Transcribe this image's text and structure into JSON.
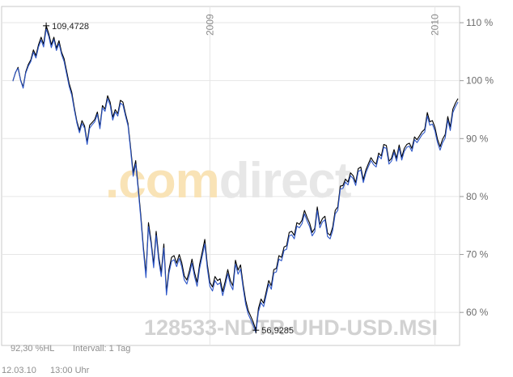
{
  "watermark": {
    "brand_prefix": ".com",
    "brand_suffix": "direct",
    "instrument_code": "128533-NDTR-UHD-USD.MSI"
  },
  "footer": {
    "percent_hl": "92,30 %HL",
    "interval": "Intervall: 1 Tag",
    "date": "12.03.10",
    "time": "13:00 Uhr"
  },
  "colors": {
    "series_a": "#000000",
    "series_b": "#2d56c8",
    "grid": "#e6e6e6",
    "watermark_orange": "#f9e3b6",
    "watermark_gray": "#e7e7e7"
  },
  "chart_data": {
    "type": "line",
    "y_unit": "%",
    "ylim": [
      54.3,
      112.8
    ],
    "y_ticks": [
      60,
      70,
      80,
      90,
      100,
      110
    ],
    "y_tick_labels": [
      "60 %",
      "70 %",
      "80 %",
      "90 %",
      "100 %",
      "110 %"
    ],
    "y_axis_position": "right",
    "grid": true,
    "year_markers": [
      {
        "label": "2009",
        "index": 77
      },
      {
        "label": "2010",
        "index": 165
      }
    ],
    "max_label": "109,4728",
    "min_label": "56,9285",
    "series": [
      {
        "values": [
          100.0,
          101.4,
          102.3,
          100.1,
          98.9,
          101.5,
          102.8,
          103.6,
          105.3,
          104.3,
          106.2,
          107.5,
          106.3,
          109.47,
          108.1,
          106.2,
          107.5,
          105.6,
          106.9,
          104.9,
          103.8,
          101.6,
          99.5,
          98.0,
          95.3,
          93.0,
          91.4,
          93.1,
          92.2,
          89.4,
          92.3,
          92.8,
          93.3,
          94.6,
          92.1,
          95.7,
          95.1,
          97.4,
          96.3,
          93.7,
          95.0,
          94.3,
          96.6,
          96.3,
          94.3,
          92.6,
          88.5,
          84.1,
          86.2,
          81.5,
          76.8,
          71.3,
          66.7,
          75.5,
          72.4,
          68.3,
          74.0,
          69.6,
          66.9,
          71.8,
          63.6,
          67.4,
          69.5,
          69.8,
          68.5,
          70.0,
          68.6,
          66.3,
          65.6,
          67.2,
          69.2,
          66.9,
          65.2,
          68.3,
          70.4,
          72.6,
          68.3,
          65.2,
          64.4,
          66.2,
          65.5,
          65.8,
          63.6,
          65.4,
          67.4,
          65.5,
          64.6,
          69.0,
          67.3,
          68.2,
          64.8,
          62.1,
          60.3,
          59.3,
          58.3,
          56.93,
          60.7,
          62.3,
          61.6,
          63.5,
          65.5,
          64.6,
          67.4,
          67.6,
          69.8,
          69.5,
          71.3,
          71.5,
          73.8,
          74.0,
          73.3,
          75.5,
          75.2,
          75.9,
          77.6,
          76.4,
          75.4,
          73.8,
          74.5,
          78.2,
          75.2,
          76.2,
          76.6,
          73.7,
          73.3,
          74.7,
          77.6,
          78.2,
          81.8,
          81.9,
          83.0,
          82.5,
          84.1,
          83.6,
          82.4,
          84.8,
          85.1,
          82.9,
          84.6,
          85.7,
          86.7,
          86.0,
          85.6,
          87.5,
          87.0,
          89.0,
          88.8,
          86.1,
          86.6,
          88.1,
          86.6,
          88.9,
          86.8,
          88.3,
          89.0,
          89.2,
          88.3,
          90.3,
          89.8,
          90.5,
          91.2,
          91.6,
          94.5,
          92.9,
          93.1,
          91.9,
          89.9,
          88.6,
          89.9,
          90.7,
          93.8,
          92.0,
          95.1,
          96.1,
          96.9
        ]
      },
      {
        "values": [
          99.9,
          101.5,
          102.1,
          100.0,
          98.7,
          101.3,
          102.5,
          103.3,
          104.9,
          103.9,
          105.8,
          107.0,
          105.8,
          108.9,
          107.6,
          105.7,
          107.1,
          105.2,
          106.4,
          104.5,
          103.3,
          101.1,
          99.0,
          97.5,
          94.9,
          92.7,
          91.0,
          92.6,
          91.8,
          89.0,
          91.8,
          92.4,
          92.9,
          94.2,
          91.7,
          95.3,
          94.7,
          96.9,
          95.8,
          93.2,
          94.6,
          93.9,
          96.1,
          95.8,
          93.9,
          92.2,
          88.0,
          83.5,
          85.6,
          81.0,
          76.2,
          70.7,
          66.0,
          74.8,
          71.8,
          67.7,
          73.3,
          68.9,
          66.2,
          71.1,
          63.0,
          66.8,
          68.8,
          69.1,
          67.9,
          69.3,
          67.9,
          65.6,
          64.9,
          66.5,
          68.5,
          66.2,
          64.5,
          67.6,
          69.7,
          71.8,
          67.6,
          64.5,
          63.7,
          65.5,
          64.8,
          65.1,
          62.9,
          64.7,
          66.7,
          64.8,
          63.9,
          68.3,
          66.6,
          67.5,
          64.2,
          61.4,
          59.7,
          58.7,
          57.7,
          56.5,
          60.1,
          61.7,
          61.0,
          62.9,
          64.9,
          64.0,
          66.8,
          67.0,
          69.2,
          68.9,
          70.7,
          70.9,
          73.2,
          73.4,
          72.7,
          74.9,
          74.6,
          75.3,
          77.0,
          75.8,
          74.8,
          73.2,
          73.9,
          77.6,
          74.6,
          75.6,
          76.0,
          73.1,
          72.7,
          74.1,
          77.0,
          77.6,
          81.3,
          81.4,
          82.5,
          82.0,
          83.6,
          83.1,
          81.9,
          84.3,
          84.6,
          82.4,
          84.1,
          85.2,
          86.2,
          85.5,
          85.1,
          87.0,
          86.5,
          88.5,
          88.3,
          85.6,
          86.1,
          87.6,
          86.1,
          88.4,
          86.3,
          87.8,
          88.5,
          88.7,
          87.8,
          89.8,
          89.3,
          90.0,
          90.7,
          91.1,
          93.9,
          92.3,
          92.5,
          91.3,
          89.3,
          88.0,
          89.3,
          90.1,
          93.2,
          91.4,
          94.5,
          95.5,
          96.3
        ]
      }
    ]
  }
}
